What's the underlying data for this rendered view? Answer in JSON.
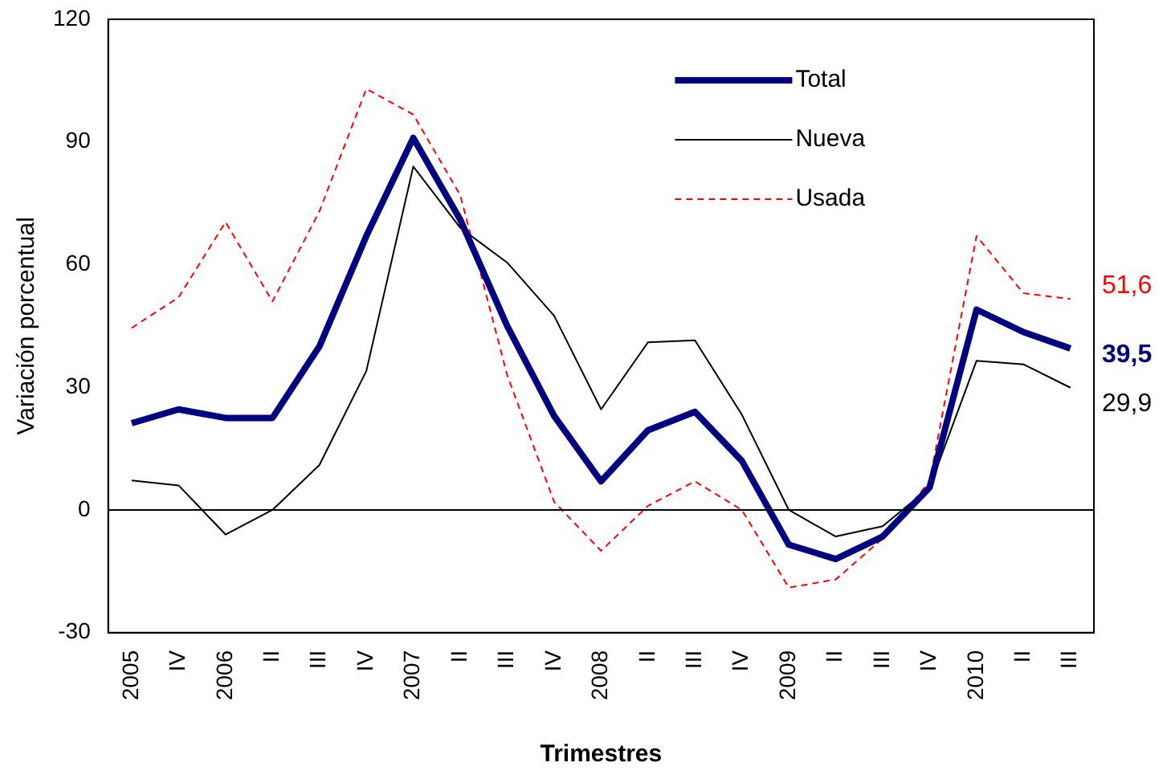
{
  "chart_data": {
    "type": "line",
    "xlabel": "Trimestres",
    "ylabel": "Variación porcentual",
    "categories": [
      "2005",
      "IV",
      "2006",
      "II",
      "III",
      "IV",
      "2007",
      "II",
      "III",
      "IV",
      "2008",
      "II",
      "III",
      "IV",
      "2009",
      "II",
      "III",
      "IV",
      "2010",
      "II",
      "III"
    ],
    "series": [
      {
        "name": "Total",
        "color": "#000080",
        "line_style": "solid",
        "values": [
          21.2,
          24.6,
          22.5,
          22.5,
          40,
          67,
          91,
          71,
          45,
          23,
          7,
          19.5,
          24,
          12,
          -8.5,
          -12,
          -6.5,
          5.5,
          49,
          43.5,
          39.5
        ],
        "value_labels": [
          null,
          null,
          null,
          null,
          null,
          null,
          null,
          null,
          null,
          null,
          null,
          null,
          null,
          null,
          null,
          null,
          null,
          null,
          null,
          null,
          "39,5"
        ]
      },
      {
        "name": "Nueva",
        "color": "#000000",
        "line_style": "solid",
        "values": [
          7.2,
          6,
          -6,
          0,
          11,
          34,
          84,
          69,
          60.5,
          47.5,
          24.6,
          41,
          41.5,
          23.3,
          0,
          -6.5,
          -4,
          5.5,
          36.5,
          35.6,
          29.9
        ],
        "value_labels": [
          null,
          null,
          null,
          null,
          null,
          null,
          null,
          null,
          null,
          null,
          null,
          null,
          null,
          null,
          null,
          null,
          null,
          null,
          null,
          null,
          "29,9"
        ]
      },
      {
        "name": "Usada",
        "color": "#ff0000",
        "line_style": "dashed",
        "values": [
          44.5,
          52,
          70.4,
          51,
          73,
          103,
          96.7,
          77,
          33,
          2,
          -10,
          1,
          7,
          0,
          -19,
          -17,
          -7,
          7,
          67,
          53,
          51.6
        ],
        "value_labels": [
          null,
          null,
          null,
          null,
          null,
          null,
          null,
          null,
          null,
          null,
          null,
          null,
          null,
          null,
          null,
          null,
          null,
          null,
          null,
          null,
          "51,6"
        ]
      }
    ],
    "ylim": [
      -30,
      120
    ],
    "yticks": [
      -30,
      0,
      30,
      60,
      90,
      120
    ],
    "ref_lines": [
      {
        "axis": "y",
        "value": 0,
        "color": "#000000"
      }
    ],
    "grid": false,
    "legend": "top right",
    "marker": "none"
  }
}
